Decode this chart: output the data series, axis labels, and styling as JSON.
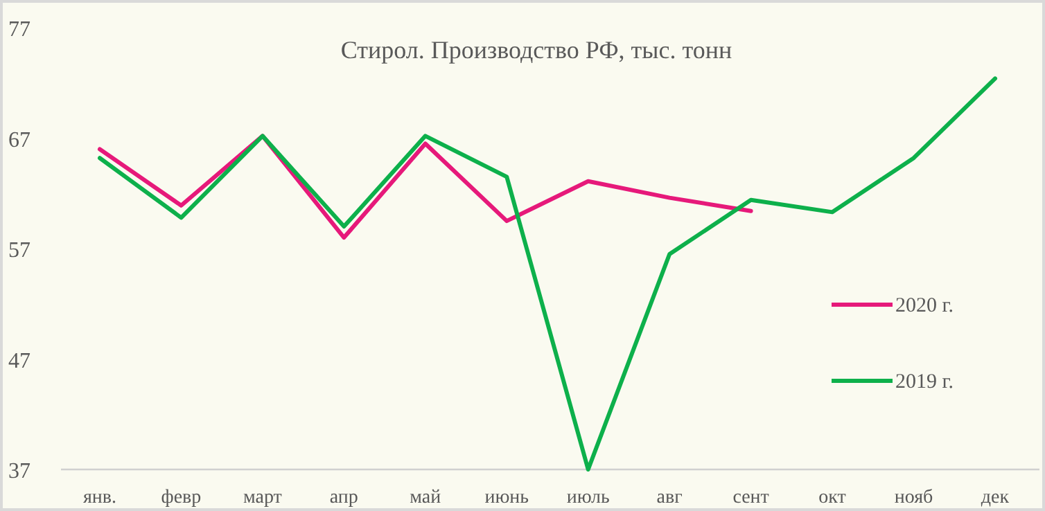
{
  "chart_data": {
    "type": "line",
    "title": "Стирол. Производство РФ, тыс. тонн",
    "categories": [
      "янв.",
      "февр",
      "март",
      "апр",
      "май",
      "июнь",
      "июль",
      "авг",
      "сент",
      "окт",
      "нояб",
      "дек"
    ],
    "series": [
      {
        "name": "2020 г.",
        "color": "#e6197a",
        "values": [
          66.0,
          60.9,
          67.2,
          58.0,
          66.5,
          59.5,
          63.1,
          61.6,
          60.4,
          null,
          null,
          null
        ]
      },
      {
        "name": "2019 г.",
        "color": "#0db04b",
        "values": [
          65.2,
          59.8,
          67.2,
          59.0,
          67.2,
          63.5,
          37.0,
          56.5,
          61.4,
          60.3,
          65.2,
          72.4
        ]
      }
    ],
    "ylim": [
      37,
      77
    ],
    "yticks": [
      37,
      47,
      57,
      67,
      77
    ],
    "grid": false,
    "legend": "right",
    "marker": "none",
    "line_style": "solid"
  }
}
